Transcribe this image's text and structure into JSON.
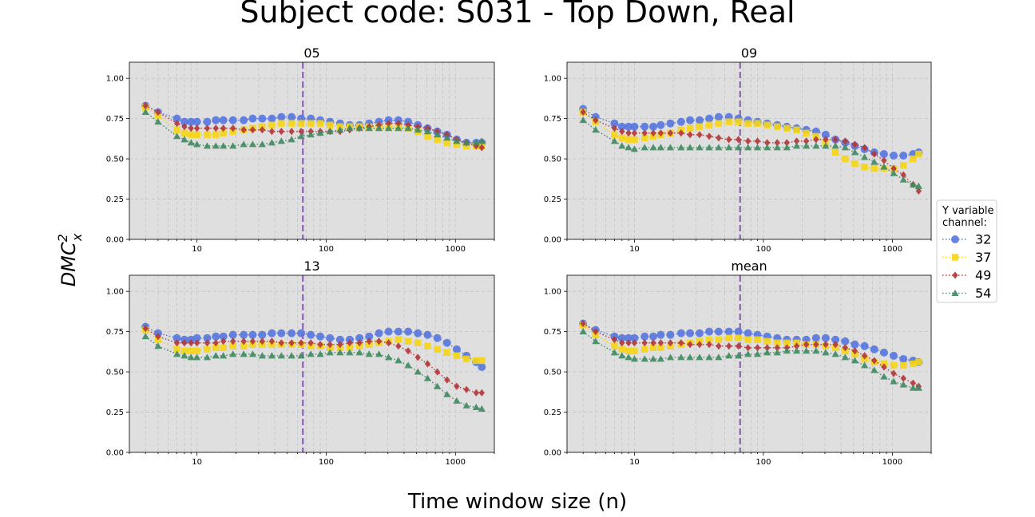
{
  "figure": {
    "title": "Subject code: S031 - Top Down, Real",
    "xlabel": "Time window size (n)",
    "ylabel_base": "DMC",
    "ylabel_sup": "2",
    "ylabel_sub": "x"
  },
  "legend": {
    "title_line1": "Y variable",
    "title_line2": "channel:",
    "placement": "right-center"
  },
  "colors": {
    "s32": "#5677e0",
    "s37": "#f6d516",
    "s49": "#b3373a",
    "s54": "#3f8a60",
    "axes_bg": "#dfdfdf",
    "vline": "#9370b8"
  },
  "chart_data": [
    {
      "type": "line",
      "title": "05",
      "xscale": "log",
      "xlim": [
        3,
        2000
      ],
      "ylim": [
        0,
        1.1
      ],
      "xticks": [
        10,
        100,
        1000
      ],
      "xticklabels": [
        "10",
        "100",
        "1000"
      ],
      "yticks": [
        0,
        0.25,
        0.5,
        0.75,
        1.0
      ],
      "yticklabels": [
        "0.00",
        "0.25",
        "0.50",
        "0.75",
        "1.00"
      ],
      "vline": 66,
      "grid": true,
      "x": [
        4,
        5,
        7,
        8,
        9,
        10,
        12,
        14,
        16,
        19,
        23,
        27,
        32,
        38,
        45,
        54,
        64,
        76,
        90,
        107,
        128,
        152,
        181,
        215,
        256,
        304,
        362,
        431,
        512,
        609,
        724,
        861,
        1024,
        1218,
        1448,
        1600
      ],
      "series": [
        {
          "name": "32",
          "marker": "circle",
          "color": "#5677e0",
          "values": [
            0.83,
            0.79,
            0.75,
            0.73,
            0.73,
            0.73,
            0.73,
            0.74,
            0.74,
            0.74,
            0.74,
            0.75,
            0.75,
            0.75,
            0.76,
            0.76,
            0.75,
            0.75,
            0.74,
            0.73,
            0.72,
            0.71,
            0.71,
            0.72,
            0.73,
            0.74,
            0.74,
            0.73,
            0.71,
            0.69,
            0.67,
            0.65,
            0.62,
            0.6,
            0.6,
            0.6
          ]
        },
        {
          "name": "37",
          "marker": "square",
          "color": "#f6d516",
          "values": [
            0.82,
            0.77,
            0.68,
            0.66,
            0.65,
            0.65,
            0.65,
            0.65,
            0.66,
            0.67,
            0.68,
            0.69,
            0.7,
            0.71,
            0.72,
            0.72,
            0.72,
            0.72,
            0.72,
            0.71,
            0.7,
            0.7,
            0.7,
            0.7,
            0.7,
            0.7,
            0.7,
            0.69,
            0.67,
            0.64,
            0.62,
            0.6,
            0.59,
            0.58,
            0.58,
            0.58
          ]
        },
        {
          "name": "49",
          "marker": "diamond",
          "color": "#b3373a",
          "values": [
            0.83,
            0.79,
            0.72,
            0.7,
            0.69,
            0.69,
            0.69,
            0.69,
            0.69,
            0.69,
            0.68,
            0.68,
            0.68,
            0.67,
            0.67,
            0.67,
            0.67,
            0.67,
            0.67,
            0.67,
            0.67,
            0.68,
            0.69,
            0.7,
            0.71,
            0.72,
            0.72,
            0.71,
            0.7,
            0.69,
            0.67,
            0.65,
            0.62,
            0.6,
            0.58,
            0.57
          ]
        },
        {
          "name": "54",
          "marker": "triangle",
          "color": "#3f8a60",
          "values": [
            0.79,
            0.73,
            0.64,
            0.62,
            0.6,
            0.59,
            0.58,
            0.58,
            0.58,
            0.58,
            0.59,
            0.59,
            0.59,
            0.6,
            0.61,
            0.62,
            0.64,
            0.65,
            0.66,
            0.67,
            0.68,
            0.69,
            0.69,
            0.69,
            0.69,
            0.69,
            0.69,
            0.69,
            0.68,
            0.67,
            0.65,
            0.63,
            0.61,
            0.6,
            0.6,
            0.61
          ]
        }
      ]
    },
    {
      "type": "line",
      "title": "09",
      "xscale": "log",
      "xlim": [
        3,
        2000
      ],
      "ylim": [
        0,
        1.1
      ],
      "xticks": [
        10,
        100,
        1000
      ],
      "xticklabels": [
        "10",
        "100",
        "1000"
      ],
      "yticks": [
        0,
        0.25,
        0.5,
        0.75,
        1.0
      ],
      "yticklabels": [
        "0.00",
        "0.25",
        "0.50",
        "0.75",
        "1.00"
      ],
      "vline": 66,
      "grid": true,
      "x": [
        4,
        5,
        7,
        8,
        9,
        10,
        12,
        14,
        16,
        19,
        23,
        27,
        32,
        38,
        45,
        54,
        64,
        76,
        90,
        107,
        128,
        152,
        181,
        215,
        256,
        304,
        362,
        431,
        512,
        609,
        724,
        861,
        1024,
        1218,
        1448,
        1600
      ],
      "series": [
        {
          "name": "32",
          "marker": "circle",
          "color": "#5677e0",
          "values": [
            0.81,
            0.76,
            0.72,
            0.7,
            0.7,
            0.7,
            0.7,
            0.7,
            0.71,
            0.72,
            0.73,
            0.74,
            0.74,
            0.75,
            0.76,
            0.76,
            0.75,
            0.74,
            0.73,
            0.72,
            0.71,
            0.7,
            0.69,
            0.68,
            0.67,
            0.65,
            0.62,
            0.6,
            0.58,
            0.56,
            0.54,
            0.53,
            0.52,
            0.52,
            0.53,
            0.54
          ]
        },
        {
          "name": "37",
          "marker": "square",
          "color": "#f6d516",
          "values": [
            0.79,
            0.73,
            0.65,
            0.63,
            0.62,
            0.62,
            0.63,
            0.64,
            0.65,
            0.66,
            0.68,
            0.69,
            0.7,
            0.71,
            0.72,
            0.73,
            0.73,
            0.72,
            0.72,
            0.71,
            0.7,
            0.69,
            0.68,
            0.66,
            0.64,
            0.6,
            0.54,
            0.5,
            0.47,
            0.45,
            0.44,
            0.44,
            0.44,
            0.46,
            0.5,
            0.53
          ]
        },
        {
          "name": "49",
          "marker": "diamond",
          "color": "#b3373a",
          "values": [
            0.79,
            0.74,
            0.69,
            0.67,
            0.66,
            0.66,
            0.66,
            0.66,
            0.66,
            0.66,
            0.66,
            0.65,
            0.65,
            0.64,
            0.63,
            0.62,
            0.62,
            0.61,
            0.61,
            0.6,
            0.6,
            0.6,
            0.61,
            0.61,
            0.62,
            0.62,
            0.62,
            0.61,
            0.59,
            0.57,
            0.53,
            0.49,
            0.44,
            0.4,
            0.34,
            0.3
          ]
        },
        {
          "name": "54",
          "marker": "triangle",
          "color": "#3f8a60",
          "values": [
            0.74,
            0.68,
            0.61,
            0.58,
            0.57,
            0.56,
            0.57,
            0.57,
            0.57,
            0.57,
            0.57,
            0.57,
            0.57,
            0.57,
            0.57,
            0.57,
            0.57,
            0.57,
            0.57,
            0.57,
            0.57,
            0.57,
            0.58,
            0.58,
            0.58,
            0.58,
            0.58,
            0.57,
            0.54,
            0.51,
            0.48,
            0.45,
            0.41,
            0.37,
            0.34,
            0.33
          ]
        }
      ]
    },
    {
      "type": "line",
      "title": "13",
      "xscale": "log",
      "xlim": [
        3,
        2000
      ],
      "ylim": [
        0,
        1.1
      ],
      "xticks": [
        10,
        100,
        1000
      ],
      "xticklabels": [
        "10",
        "100",
        "1000"
      ],
      "yticks": [
        0,
        0.25,
        0.5,
        0.75,
        1.0
      ],
      "yticklabels": [
        "0.00",
        "0.25",
        "0.50",
        "0.75",
        "1.00"
      ],
      "vline": 66,
      "grid": true,
      "x": [
        4,
        5,
        7,
        8,
        9,
        10,
        12,
        14,
        16,
        19,
        23,
        27,
        32,
        38,
        45,
        54,
        64,
        76,
        90,
        107,
        128,
        152,
        181,
        215,
        256,
        304,
        362,
        431,
        512,
        609,
        724,
        861,
        1024,
        1218,
        1448,
        1600
      ],
      "series": [
        {
          "name": "32",
          "marker": "circle",
          "color": "#5677e0",
          "values": [
            0.78,
            0.74,
            0.71,
            0.7,
            0.7,
            0.71,
            0.71,
            0.72,
            0.72,
            0.73,
            0.73,
            0.73,
            0.73,
            0.74,
            0.74,
            0.74,
            0.74,
            0.73,
            0.72,
            0.71,
            0.7,
            0.7,
            0.71,
            0.72,
            0.74,
            0.75,
            0.75,
            0.75,
            0.74,
            0.73,
            0.71,
            0.68,
            0.64,
            0.6,
            0.56,
            0.53
          ]
        },
        {
          "name": "37",
          "marker": "square",
          "color": "#f6d516",
          "values": [
            0.76,
            0.7,
            0.64,
            0.63,
            0.63,
            0.63,
            0.64,
            0.65,
            0.65,
            0.66,
            0.66,
            0.67,
            0.67,
            0.67,
            0.67,
            0.67,
            0.67,
            0.66,
            0.66,
            0.65,
            0.65,
            0.65,
            0.66,
            0.67,
            0.68,
            0.69,
            0.7,
            0.69,
            0.68,
            0.66,
            0.64,
            0.62,
            0.6,
            0.58,
            0.57,
            0.57
          ]
        },
        {
          "name": "49",
          "marker": "diamond",
          "color": "#b3373a",
          "values": [
            0.77,
            0.72,
            0.68,
            0.68,
            0.68,
            0.68,
            0.68,
            0.68,
            0.69,
            0.69,
            0.69,
            0.69,
            0.69,
            0.69,
            0.68,
            0.68,
            0.68,
            0.68,
            0.67,
            0.67,
            0.67,
            0.68,
            0.68,
            0.69,
            0.69,
            0.68,
            0.66,
            0.63,
            0.59,
            0.55,
            0.5,
            0.45,
            0.41,
            0.39,
            0.37,
            0.37
          ]
        },
        {
          "name": "54",
          "marker": "triangle",
          "color": "#3f8a60",
          "values": [
            0.72,
            0.66,
            0.61,
            0.6,
            0.59,
            0.59,
            0.59,
            0.6,
            0.6,
            0.61,
            0.61,
            0.61,
            0.6,
            0.6,
            0.6,
            0.6,
            0.6,
            0.61,
            0.61,
            0.62,
            0.62,
            0.62,
            0.62,
            0.61,
            0.61,
            0.59,
            0.57,
            0.54,
            0.5,
            0.46,
            0.41,
            0.36,
            0.32,
            0.29,
            0.28,
            0.27
          ]
        }
      ]
    },
    {
      "type": "line",
      "title": "mean",
      "xscale": "log",
      "xlim": [
        3,
        2000
      ],
      "ylim": [
        0,
        1.1
      ],
      "xticks": [
        10,
        100,
        1000
      ],
      "xticklabels": [
        "10",
        "100",
        "1000"
      ],
      "yticks": [
        0,
        0.25,
        0.5,
        0.75,
        1.0
      ],
      "yticklabels": [
        "0.00",
        "0.25",
        "0.50",
        "0.75",
        "1.00"
      ],
      "vline": 66,
      "grid": true,
      "x": [
        4,
        5,
        7,
        8,
        9,
        10,
        12,
        14,
        16,
        19,
        23,
        27,
        32,
        38,
        45,
        54,
        64,
        76,
        90,
        107,
        128,
        152,
        181,
        215,
        256,
        304,
        362,
        431,
        512,
        609,
        724,
        861,
        1024,
        1218,
        1448,
        1600
      ],
      "series": [
        {
          "name": "32",
          "marker": "circle",
          "color": "#5677e0",
          "values": [
            0.8,
            0.76,
            0.72,
            0.71,
            0.71,
            0.71,
            0.72,
            0.72,
            0.73,
            0.73,
            0.74,
            0.74,
            0.74,
            0.75,
            0.75,
            0.75,
            0.75,
            0.74,
            0.73,
            0.72,
            0.71,
            0.7,
            0.7,
            0.7,
            0.71,
            0.71,
            0.7,
            0.69,
            0.67,
            0.66,
            0.64,
            0.62,
            0.6,
            0.58,
            0.57,
            0.56
          ]
        },
        {
          "name": "37",
          "marker": "square",
          "color": "#f6d516",
          "values": [
            0.79,
            0.73,
            0.66,
            0.64,
            0.63,
            0.63,
            0.64,
            0.65,
            0.65,
            0.66,
            0.67,
            0.68,
            0.69,
            0.7,
            0.7,
            0.71,
            0.71,
            0.7,
            0.7,
            0.69,
            0.68,
            0.68,
            0.68,
            0.67,
            0.67,
            0.66,
            0.65,
            0.63,
            0.61,
            0.58,
            0.56,
            0.55,
            0.54,
            0.54,
            0.55,
            0.56
          ]
        },
        {
          "name": "49",
          "marker": "diamond",
          "color": "#b3373a",
          "values": [
            0.8,
            0.75,
            0.7,
            0.68,
            0.68,
            0.68,
            0.68,
            0.68,
            0.68,
            0.68,
            0.68,
            0.67,
            0.67,
            0.67,
            0.66,
            0.66,
            0.66,
            0.65,
            0.65,
            0.65,
            0.65,
            0.65,
            0.66,
            0.67,
            0.67,
            0.67,
            0.67,
            0.65,
            0.63,
            0.6,
            0.57,
            0.53,
            0.49,
            0.46,
            0.43,
            0.41
          ]
        },
        {
          "name": "54",
          "marker": "triangle",
          "color": "#3f8a60",
          "values": [
            0.75,
            0.69,
            0.62,
            0.6,
            0.59,
            0.58,
            0.58,
            0.58,
            0.58,
            0.59,
            0.59,
            0.59,
            0.59,
            0.59,
            0.59,
            0.6,
            0.6,
            0.61,
            0.61,
            0.62,
            0.62,
            0.63,
            0.63,
            0.63,
            0.63,
            0.62,
            0.61,
            0.59,
            0.57,
            0.54,
            0.51,
            0.47,
            0.44,
            0.42,
            0.4,
            0.4
          ]
        }
      ]
    }
  ]
}
